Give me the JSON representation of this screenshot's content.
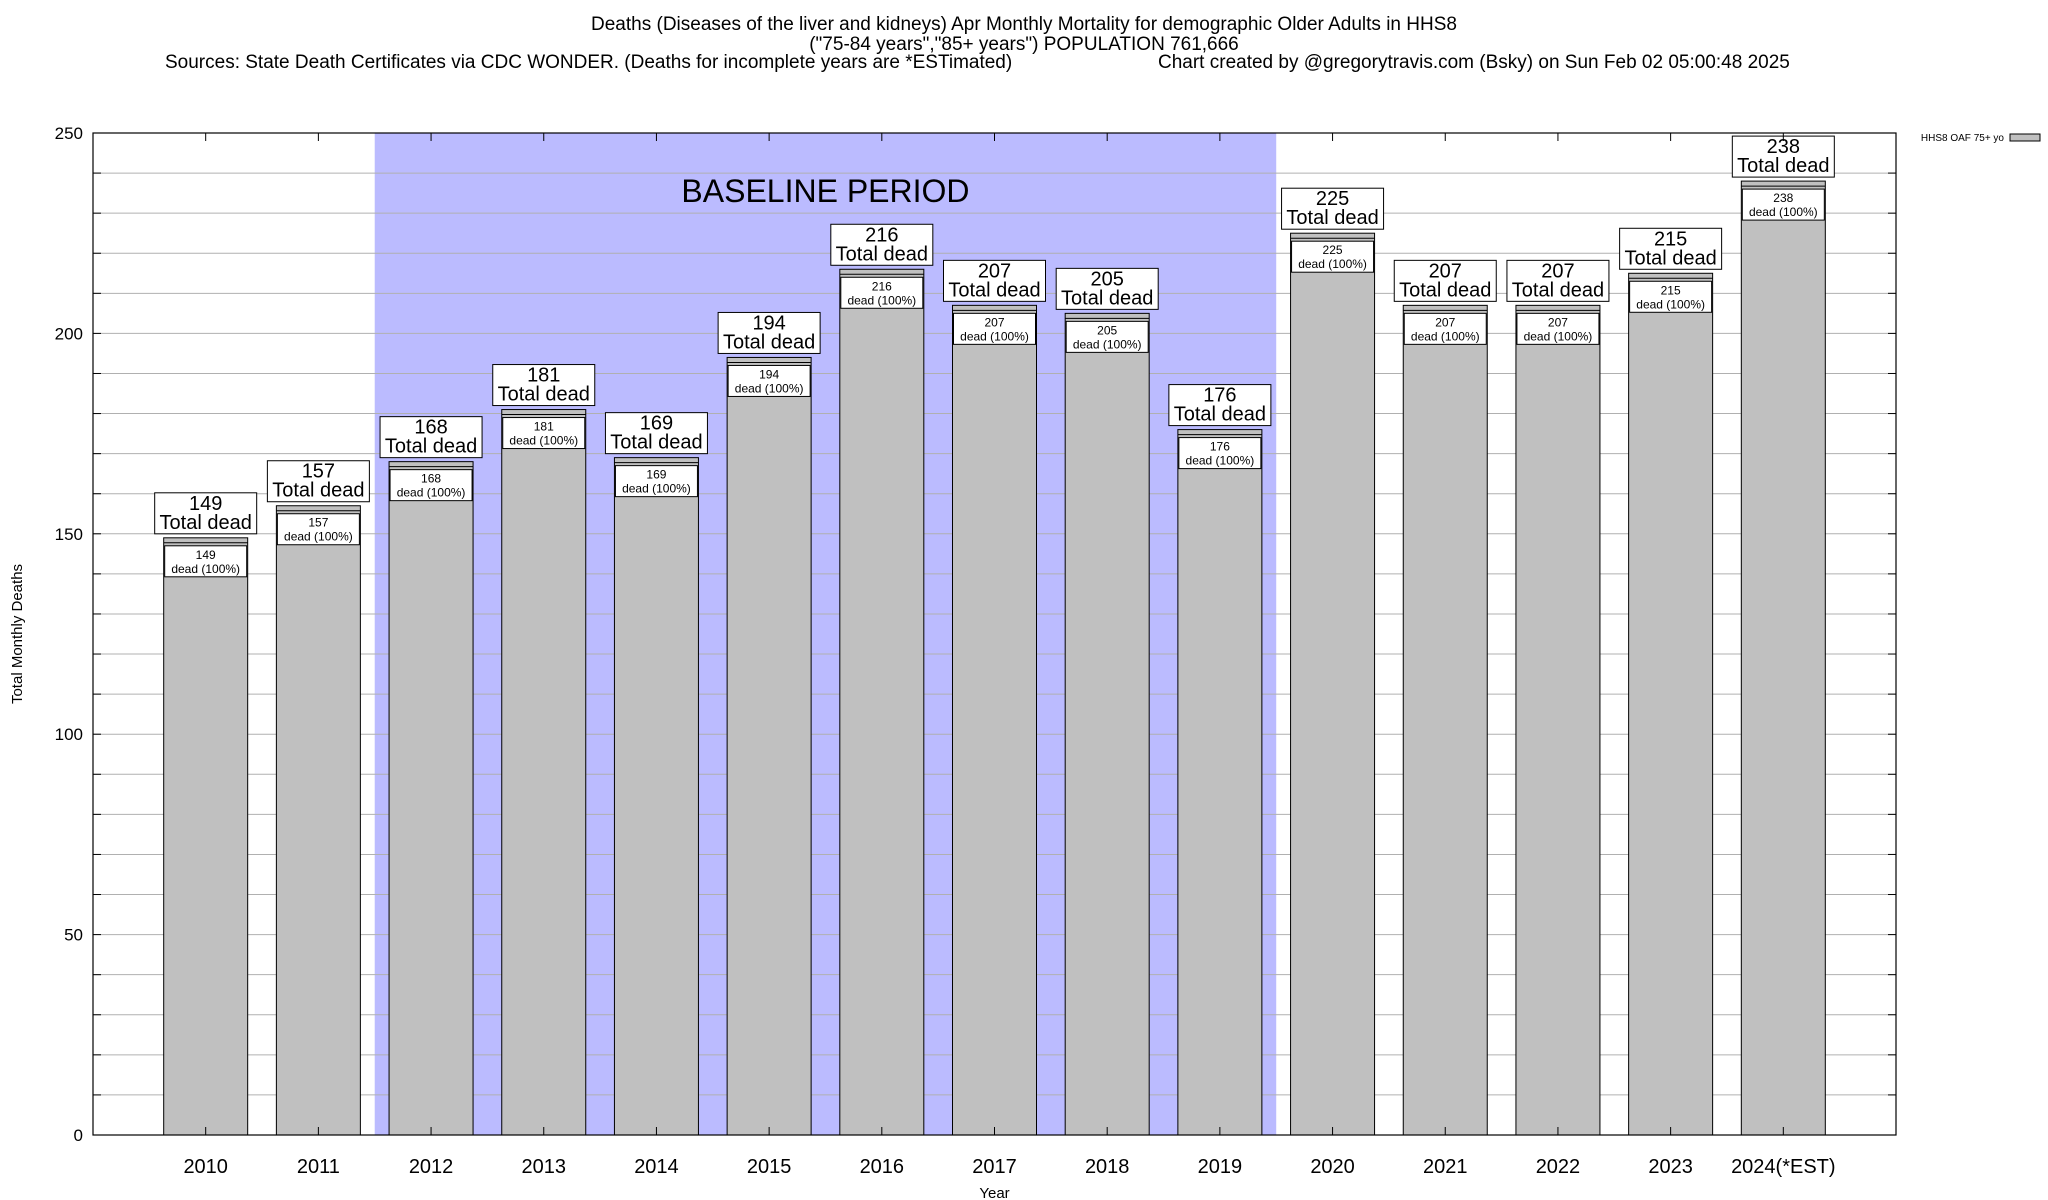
{
  "header": {
    "title_line1": "Deaths (Diseases of the liver and kidneys) Apr Monthly Mortality for demographic Older Adults in HHS8",
    "title_line2": "(\"75-84 years\",\"85+ years\") POPULATION 761,666",
    "sources": "Sources: State Death Certificates via CDC WONDER. (Deaths for incomplete years are *ESTimated)",
    "credit": "Chart created by @gregorytravis.com (Bsky) on Sun Feb 02 05:00:48 2025"
  },
  "chart_data": {
    "type": "bar",
    "xlabel": "Year",
    "ylabel": "Total Monthly Deaths",
    "ylim": [
      0,
      250
    ],
    "y_ticks": [
      0,
      50,
      100,
      150,
      200,
      250
    ],
    "y_minor_step": 10,
    "grid": true,
    "legend_position": "top-right",
    "categories": [
      "2010",
      "2011",
      "2012",
      "2013",
      "2014",
      "2015",
      "2016",
      "2017",
      "2018",
      "2019",
      "2020",
      "2021",
      "2022",
      "2023",
      "2024(*EST)"
    ],
    "series": [
      {
        "name": "HHS8 OAF 75+ yo",
        "color": "#c0c0c0",
        "values": [
          149,
          157,
          168,
          181,
          169,
          194,
          216,
          207,
          205,
          176,
          225,
          207,
          207,
          215,
          238
        ]
      }
    ],
    "outer_label_suffix": "Total dead",
    "inner_label_suffix": "dead (100%)",
    "baseline": {
      "label": "BASELINE PERIOD",
      "start_category": "2012",
      "end_category": "2019",
      "color": "#bbbbff"
    }
  }
}
